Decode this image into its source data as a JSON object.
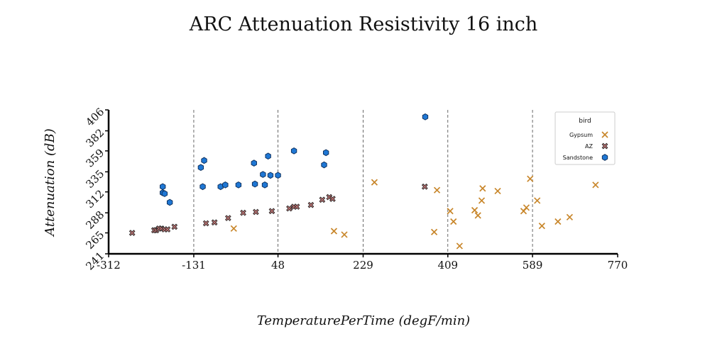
{
  "chart_data": {
    "type": "scatter",
    "title": "ARC Attenuation Resistivity 16 inch",
    "xlabel": "TemperaturePerTime (degF/min)",
    "ylabel": "Attenuation (dB)",
    "xlim": [
      -312,
      770
    ],
    "ylim": [
      241,
      406
    ],
    "xticks": [
      -312,
      -131,
      48,
      229,
      409,
      589,
      770
    ],
    "yticks": [
      241,
      265,
      288,
      312,
      335,
      359,
      382,
      406
    ],
    "vgrid": [
      -131,
      48,
      229,
      409,
      589
    ],
    "grid": "vertical dashed",
    "legend": {
      "title": "bird",
      "position": "top-right"
    },
    "series": [
      {
        "name": "Gypsum",
        "marker": "x",
        "color": "#c8862a",
        "points": [
          [
            -46,
            270
          ],
          [
            167,
            267
          ],
          [
            189,
            263
          ],
          [
            253,
            323
          ],
          [
            386,
            314
          ],
          [
            380,
            266
          ],
          [
            414,
            290
          ],
          [
            421,
            278
          ],
          [
            434,
            250
          ],
          [
            466,
            291
          ],
          [
            473,
            285
          ],
          [
            481,
            302
          ],
          [
            483,
            316
          ],
          [
            515,
            313
          ],
          [
            570,
            290
          ],
          [
            576,
            294
          ],
          [
            584,
            327
          ],
          [
            599,
            302
          ],
          [
            609,
            273
          ],
          [
            643,
            278
          ],
          [
            668,
            283
          ],
          [
            723,
            320
          ]
        ]
      },
      {
        "name": "AZ",
        "marker": "X",
        "color": "#b87070",
        "points": [
          [
            -262,
            265
          ],
          [
            -215,
            268
          ],
          [
            -211,
            268
          ],
          [
            -205,
            270
          ],
          [
            -200,
            270
          ],
          [
            -193,
            269
          ],
          [
            -187,
            269
          ],
          [
            -172,
            272
          ],
          [
            -105,
            276
          ],
          [
            -87,
            277
          ],
          [
            -58,
            282
          ],
          [
            -26,
            288
          ],
          [
            1,
            289
          ],
          [
            35,
            290
          ],
          [
            72,
            293
          ],
          [
            82,
            295
          ],
          [
            88,
            295
          ],
          [
            118,
            297
          ],
          [
            142,
            303
          ],
          [
            157,
            306
          ],
          [
            164,
            304
          ],
          [
            360,
            318
          ]
        ]
      },
      {
        "name": "Sandstone",
        "marker": "hexagon",
        "color": "#1f77d4",
        "points": [
          [
            -197,
            318
          ],
          [
            -197,
            311
          ],
          [
            -193,
            310
          ],
          [
            -182,
            300
          ],
          [
            -116,
            340
          ],
          [
            -112,
            318
          ],
          [
            -109,
            348
          ],
          [
            -74,
            318
          ],
          [
            -64,
            320
          ],
          [
            -36,
            320
          ],
          [
            -3,
            345
          ],
          [
            -1,
            321
          ],
          [
            16,
            332
          ],
          [
            20,
            320
          ],
          [
            27,
            353
          ],
          [
            32,
            331
          ],
          [
            48,
            331
          ],
          [
            82,
            359
          ],
          [
            146,
            343
          ],
          [
            150,
            357
          ],
          [
            361,
            398
          ]
        ]
      }
    ]
  }
}
